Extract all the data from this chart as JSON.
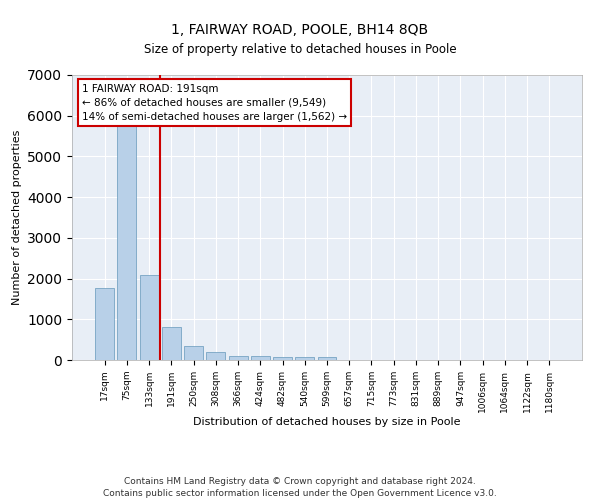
{
  "title": "1, FAIRWAY ROAD, POOLE, BH14 8QB",
  "subtitle": "Size of property relative to detached houses in Poole",
  "xlabel": "Distribution of detached houses by size in Poole",
  "ylabel": "Number of detached properties",
  "bar_color": "#b8d0e8",
  "bar_edge_color": "#6699bb",
  "background_color": "#e8eef6",
  "grid_color": "#ffffff",
  "vline_color": "#cc0000",
  "annotation_text": "1 FAIRWAY ROAD: 191sqm\n← 86% of detached houses are smaller (9,549)\n14% of semi-detached houses are larger (1,562) →",
  "annotation_box_color": "#cc0000",
  "categories": [
    "17sqm",
    "75sqm",
    "133sqm",
    "191sqm",
    "250sqm",
    "308sqm",
    "366sqm",
    "424sqm",
    "482sqm",
    "540sqm",
    "599sqm",
    "657sqm",
    "715sqm",
    "773sqm",
    "831sqm",
    "889sqm",
    "947sqm",
    "1006sqm",
    "1064sqm",
    "1122sqm",
    "1180sqm"
  ],
  "values": [
    1780,
    5800,
    2100,
    800,
    340,
    185,
    110,
    90,
    80,
    70,
    65,
    0,
    0,
    0,
    0,
    0,
    0,
    0,
    0,
    0,
    0
  ],
  "ylim": [
    0,
    7000
  ],
  "yticks": [
    0,
    1000,
    2000,
    3000,
    4000,
    5000,
    6000,
    7000
  ],
  "footnote1": "Contains HM Land Registry data © Crown copyright and database right 2024.",
  "footnote2": "Contains public sector information licensed under the Open Government Licence v3.0."
}
